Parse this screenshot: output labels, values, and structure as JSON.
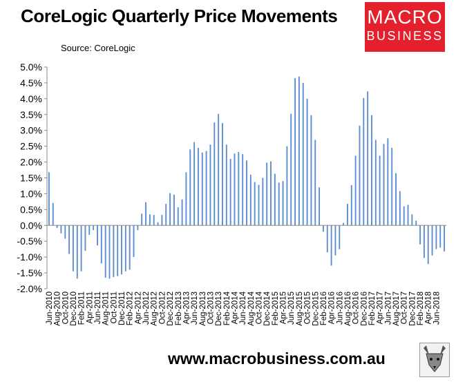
{
  "header": {
    "title": "CoreLogic Quarterly Price Movements",
    "source": "Source: CoreLogic"
  },
  "logo": {
    "line1": "MACRO",
    "line2": "BUSINESS",
    "color": "#e3202b"
  },
  "footer": {
    "website": "www.macrobusiness.com.au"
  },
  "chart_data": {
    "type": "bar",
    "series_color": "#5b8fd1",
    "ylim": [
      -0.02,
      0.05
    ],
    "yticks": [
      -0.02,
      -0.015,
      -0.01,
      -0.005,
      0.0,
      0.005,
      0.01,
      0.015,
      0.02,
      0.025,
      0.03,
      0.035,
      0.04,
      0.045,
      0.05
    ],
    "ytick_labels": [
      "-2.0%",
      "-1.5%",
      "-1.0%",
      "-0.5%",
      "0.0%",
      "0.5%",
      "1.0%",
      "1.5%",
      "2.0%",
      "2.5%",
      "3.0%",
      "3.5%",
      "4.0%",
      "4.5%",
      "5.0%"
    ],
    "grid": false,
    "legend": "none",
    "xtick_labels": [
      "Jun-2010",
      "Aug-2010",
      "Oct-2010",
      "Dec-2010",
      "Feb-2011",
      "Apr-2011",
      "Jun-2011",
      "Aug-2011",
      "Oct-2011",
      "Dec-2011",
      "Feb-2012",
      "Apr-2012",
      "Jun-2012",
      "Aug-2012",
      "Oct-2012",
      "Dec-2012",
      "Feb-2013",
      "Apr-2013",
      "Jun-2013",
      "Aug-2013",
      "Oct-2013",
      "Dec-2013",
      "Feb-2014",
      "Apr-2014",
      "Jun-2014",
      "Aug-2014",
      "Oct-2014",
      "Dec-2014",
      "Feb-2015",
      "Apr-2015",
      "Jun-2015",
      "Aug-2015",
      "Oct-2015",
      "Dec-2015",
      "Feb-2016",
      "Apr-2016",
      "Jun-2016",
      "Aug-2016",
      "Oct-2016",
      "Dec-2016",
      "Feb-2017",
      "Apr-2017",
      "Jun-2017",
      "Aug-2017",
      "Oct-2017",
      "Dec-2017",
      "Feb-2018",
      "Apr-2018",
      "Jun-2018"
    ],
    "values": [
      0.0168,
      0.0071,
      -0.0008,
      -0.0025,
      -0.0042,
      -0.009,
      -0.0145,
      -0.0168,
      -0.0145,
      -0.008,
      -0.003,
      -0.0015,
      -0.0063,
      -0.012,
      -0.0165,
      -0.0168,
      -0.0163,
      -0.016,
      -0.0155,
      -0.0145,
      -0.014,
      -0.01,
      -0.0015,
      0.0037,
      0.0073,
      0.0035,
      0.0033,
      0.001,
      0.0033,
      0.0068,
      0.0102,
      0.0097,
      0.0057,
      0.0082,
      0.0168,
      0.024,
      0.0263,
      0.0245,
      0.023,
      0.0235,
      0.0255,
      0.0325,
      0.0352,
      0.0323,
      0.0255,
      0.021,
      0.0227,
      0.0232,
      0.0225,
      0.0205,
      0.016,
      0.0137,
      0.0128,
      0.015,
      0.0198,
      0.0202,
      0.0163,
      0.0135,
      0.014,
      0.025,
      0.0352,
      0.0465,
      0.047,
      0.045,
      0.04,
      0.0348,
      0.027,
      0.012,
      -0.002,
      -0.0085,
      -0.0127,
      -0.0095,
      -0.0075,
      0.0008,
      0.0068,
      0.0127,
      0.022,
      0.0315,
      0.0402,
      0.0423,
      0.0348,
      0.027,
      0.022,
      0.0257,
      0.0275,
      0.0245,
      0.0165,
      0.0108,
      0.006,
      0.0065,
      0.0035,
      0.0015,
      -0.006,
      -0.0103,
      -0.0122,
      -0.0095,
      -0.0075,
      -0.007,
      -0.0082
    ]
  }
}
